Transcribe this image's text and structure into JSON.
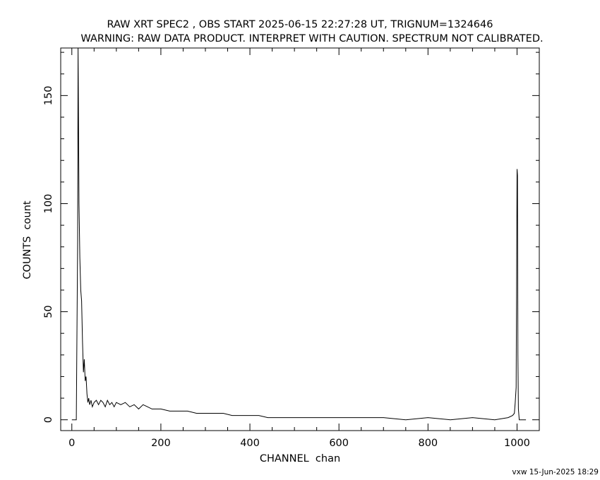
{
  "chart_data": {
    "type": "line",
    "title": "RAW XRT SPEC2 , OBS START 2025-06-15 22:27:28 UT, TRIGNUM=1324646",
    "subtitle": "WARNING: RAW DATA PRODUCT. INTERPRET WITH CAUTION. SPECTRUM NOT CALIBRATED.",
    "xlabel": "CHANNEL  chan",
    "ylabel": "COUNTS  count",
    "footer": "vxw 15-Jun-2025 18:29",
    "xlim": [
      -25,
      1050
    ],
    "ylim": [
      -5,
      172
    ],
    "x_ticks": [
      0,
      200,
      400,
      600,
      800,
      1000
    ],
    "x_tick_labels": [
      "0",
      "200",
      "400",
      "600",
      "800",
      "1000"
    ],
    "y_ticks": [
      0,
      50,
      100,
      150
    ],
    "y_tick_labels": [
      "0",
      "50",
      "100",
      "150"
    ],
    "grid": false,
    "series": [
      {
        "x": [
          0,
          10,
          13,
          14,
          15,
          16,
          17,
          18,
          20,
          22,
          24,
          26,
          28,
          30,
          32,
          34,
          36,
          38,
          40,
          43,
          46,
          50,
          55,
          60,
          65,
          70,
          75,
          80,
          85,
          90,
          95,
          100,
          110,
          120,
          130,
          140,
          150,
          160,
          170,
          180,
          190,
          200,
          220,
          240,
          260,
          280,
          300,
          320,
          340,
          360,
          380,
          400,
          420,
          440,
          460,
          480,
          500,
          550,
          600,
          650,
          700,
          750,
          800,
          850,
          900,
          950,
          980,
          990,
          994,
          996,
          998,
          999,
          1000,
          1001,
          1002,
          1003,
          1005,
          1010,
          1020
        ],
        "y": [
          0,
          0,
          83,
          172,
          140,
          100,
          88,
          75,
          60,
          55,
          36,
          22,
          28,
          18,
          20,
          12,
          8,
          10,
          7,
          9,
          6,
          8,
          9,
          7,
          9,
          8,
          6,
          9,
          7,
          8,
          6,
          8,
          7,
          8,
          6,
          7,
          5,
          7,
          6,
          5,
          5,
          5,
          4,
          4,
          4,
          3,
          3,
          3,
          3,
          2,
          2,
          2,
          2,
          1,
          1,
          1,
          1,
          1,
          1,
          1,
          1,
          0,
          1,
          0,
          1,
          0,
          1,
          2,
          3,
          8,
          15,
          60,
          116,
          113,
          30,
          5,
          0,
          0,
          0
        ]
      }
    ]
  }
}
